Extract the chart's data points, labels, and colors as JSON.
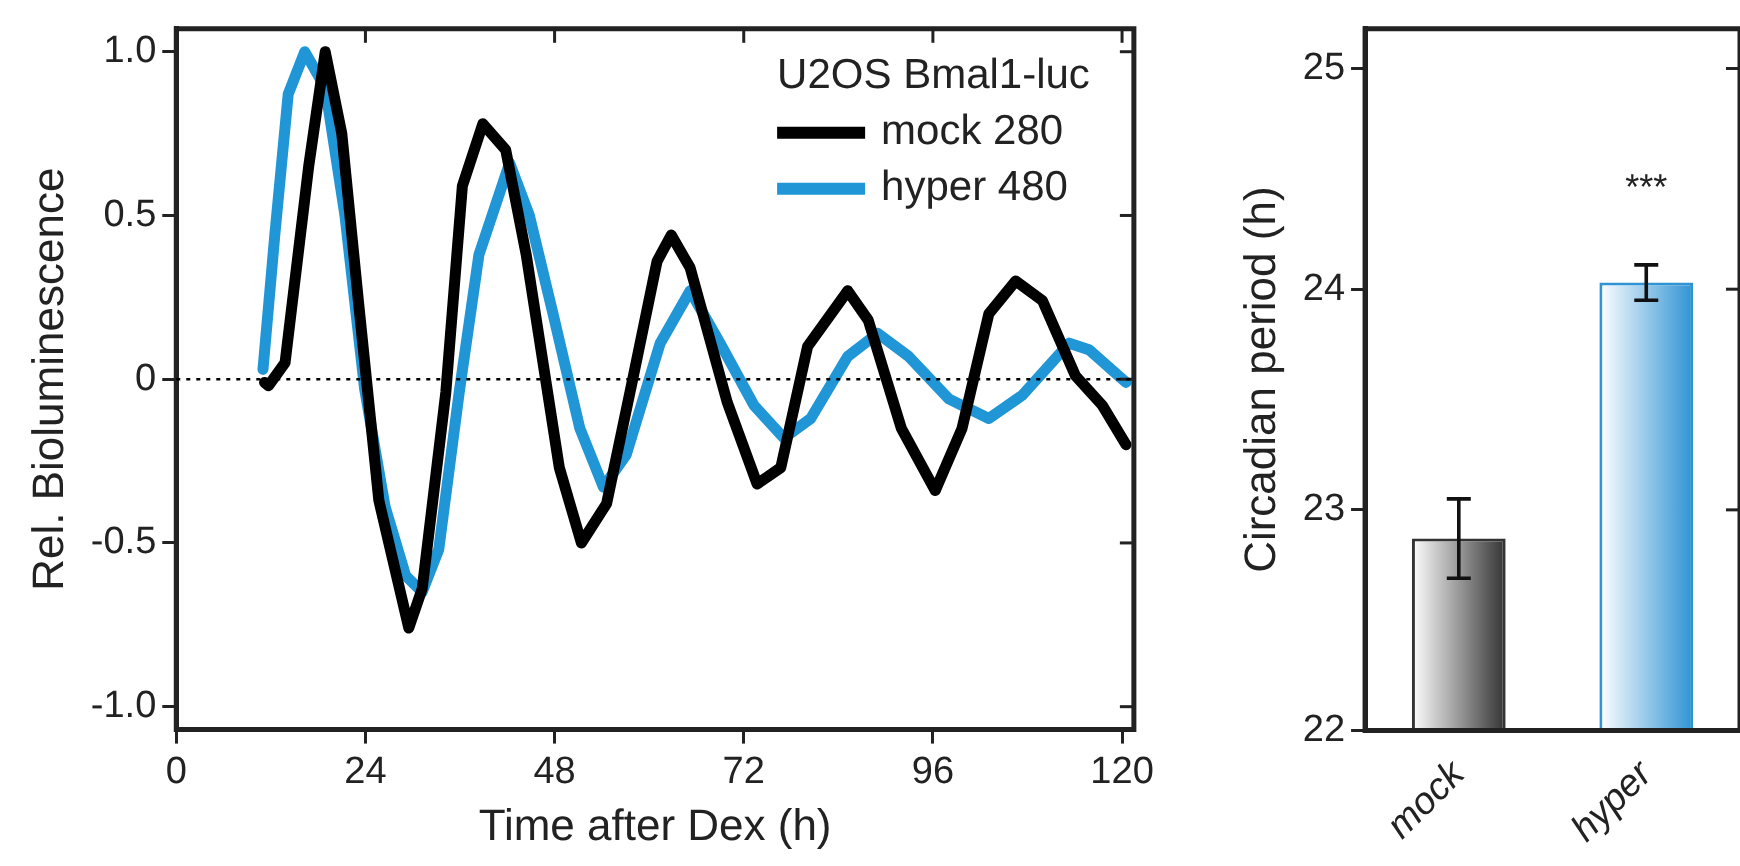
{
  "chart_data": [
    {
      "type": "line",
      "xlabel": "Time after Dex (h)",
      "ylabel": "Rel. Bioluminescence",
      "legend_title": "U2OS Bmal1-luc",
      "legend": "top right",
      "marker": "none",
      "grid": false,
      "xlim": [
        0,
        121.5
      ],
      "xticks": [
        0,
        24,
        48,
        72,
        96,
        120
      ],
      "ylim": [
        -1.07,
        1.07
      ],
      "yticks": [
        {
          "value": 1,
          "label": "1.0"
        },
        0.5,
        0,
        -0.5,
        {
          "value": -1,
          "label": "-1.0"
        }
      ],
      "ref_lines": [
        {
          "axis": "y",
          "value": 0,
          "line_style": "dotted",
          "color": "#000000"
        }
      ],
      "series": [
        {
          "name": "mock 280",
          "color": "#000000",
          "x": [
            11.2,
            11.7,
            13.8,
            16.8,
            18.9,
            21.0,
            23.1,
            25.7,
            29.5,
            31.2,
            34.2,
            36.3,
            38.9,
            41.8,
            44.4,
            48.6,
            51.4,
            54.6,
            58.0,
            61.0,
            62.8,
            65.2,
            69.9,
            73.7,
            76.7,
            80.1,
            85.2,
            87.8,
            92.0,
            96.3,
            99.7,
            103.1,
            106.5,
            109.9,
            114.1,
            117.5,
            120.5
          ],
          "values": [
            -0.01,
            -0.02,
            0.05,
            0.65,
            1.0,
            0.75,
            0.24,
            -0.37,
            -0.76,
            -0.64,
            -0.04,
            0.59,
            0.78,
            0.7,
            0.38,
            -0.27,
            -0.5,
            -0.38,
            0.01,
            0.36,
            0.44,
            0.34,
            -0.07,
            -0.32,
            -0.27,
            0.1,
            0.27,
            0.18,
            -0.15,
            -0.34,
            -0.15,
            0.2,
            0.3,
            0.24,
            0.01,
            -0.08,
            -0.2
          ]
        },
        {
          "name": "hyper 480",
          "color": "#2196d6",
          "x": [
            11.0,
            12.5,
            14.2,
            16.3,
            18.9,
            21.4,
            23.9,
            26.5,
            29.1,
            31.2,
            33.3,
            35.9,
            38.4,
            42.3,
            44.8,
            47.8,
            51.2,
            54.2,
            57.1,
            61.4,
            65.2,
            69.0,
            73.3,
            77.1,
            80.5,
            85.2,
            89.0,
            92.9,
            98.0,
            103.1,
            107.3,
            113.3,
            115.8,
            120.5
          ],
          "values": [
            0.03,
            0.44,
            0.87,
            1.0,
            0.89,
            0.5,
            -0.03,
            -0.39,
            -0.6,
            -0.65,
            -0.52,
            -0.04,
            0.38,
            0.66,
            0.5,
            0.2,
            -0.15,
            -0.33,
            -0.23,
            0.11,
            0.27,
            0.11,
            -0.08,
            -0.18,
            -0.12,
            0.07,
            0.14,
            0.07,
            -0.06,
            -0.12,
            -0.05,
            0.11,
            0.09,
            -0.01
          ]
        }
      ]
    },
    {
      "type": "bar",
      "ylabel": "Circadian period (h)",
      "categories": [
        "mock",
        "hyper"
      ],
      "values": [
        22.87,
        24.03
      ],
      "errors": [
        0.18,
        0.08
      ],
      "colors": [
        "#333333",
        "#2f93d4"
      ],
      "ylim": [
        22,
        25.18
      ],
      "yticks": [
        22,
        23,
        24,
        25
      ],
      "grid": false,
      "annotations": [
        "***"
      ]
    }
  ]
}
